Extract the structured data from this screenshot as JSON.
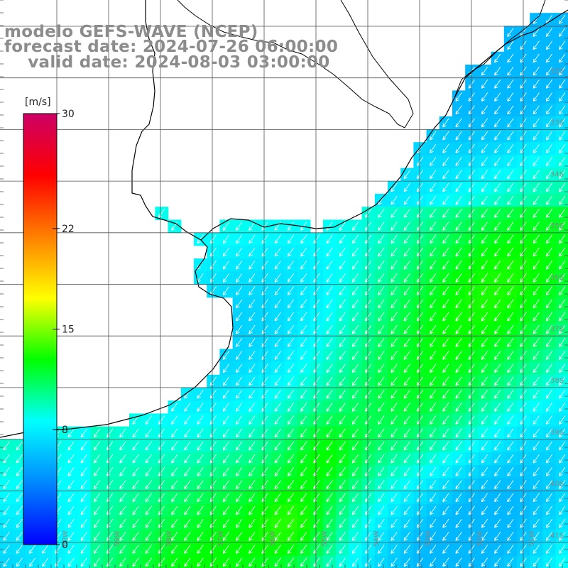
{
  "title": {
    "line1": "modelo GEFS-WAVE (NCEP)",
    "line2": "forecast date: 2024-07-26 06:00:00",
    "line3": "    valid date: 2024-08-03 03:00:00"
  },
  "colorbar": {
    "unit": "[m/s]",
    "min": 0,
    "max": 30,
    "tick_labels": [
      "30",
      "22",
      "15",
      "8",
      "0"
    ],
    "tick_values": [
      30,
      22,
      15,
      8,
      0
    ],
    "stops": [
      "#0000ff",
      "#0088ff",
      "#00ffff",
      "#00ff00",
      "#ffff00",
      "#ff8000",
      "#ff0000",
      "#cc0066"
    ]
  },
  "grid": {
    "lat_labels": [
      "32S",
      "33S",
      "34S",
      "35S",
      "36S",
      "37S",
      "38S",
      "39S",
      "40S",
      "41S"
    ],
    "lon_labels": [
      "60W",
      "59W",
      "58W",
      "57W",
      "56W",
      "55W",
      "54W",
      "53W",
      "52W",
      "51W"
    ]
  },
  "colors": {
    "land": "#ffffff",
    "coastline": "#000000",
    "grid": "#555555",
    "arrows": "#ffffff",
    "title": "#8c8c8c"
  },
  "field": {
    "variable": "wind speed",
    "units": "m/s",
    "arrow_direction": "toward southwest",
    "typical_speed_ms": 10
  }
}
